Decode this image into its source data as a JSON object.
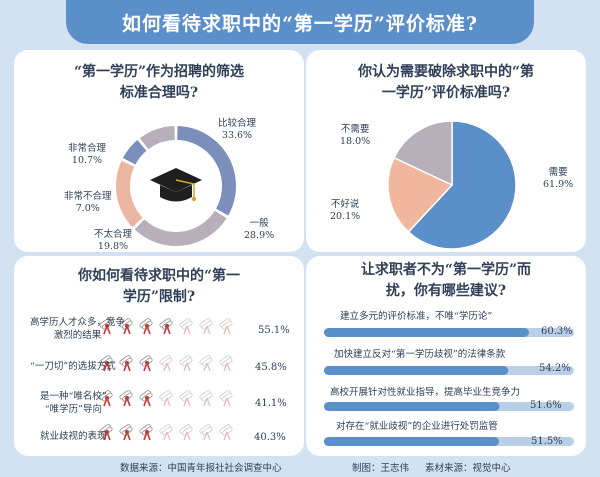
{
  "header": {
    "title": "如何看待求职中的“第一学历”评价标准?"
  },
  "colors": {
    "banner": "#5b8fca",
    "ring_blue": "#7b8fbd",
    "ring_gray": "#b7b0bb",
    "ring_salmon": "#eab6a2",
    "pie_blue": "#5b8fca",
    "pie_salmon": "#f1b79c",
    "pie_gray": "#b7afb9",
    "bar_track": "#b9cfe6",
    "bar_fill": "#5b8fca",
    "icon_red": "#c23a36"
  },
  "chart_data": [
    {
      "type": "pie",
      "style": "donut",
      "title_lines": [
        "“第一学历”作为招聘的筛选",
        "标准合理吗?"
      ],
      "slices": [
        {
          "label": "比较合理",
          "value": 33.6,
          "value_text": "33.6%",
          "color": "#7b8fbd"
        },
        {
          "label": "一般",
          "value": 28.9,
          "value_text": "28.9%",
          "color": "#b7b0bb"
        },
        {
          "label": "不太合理",
          "value": 19.8,
          "value_text": "19.8%",
          "color": "#eab6a2"
        },
        {
          "label": "非常不合理",
          "value": 7.0,
          "value_text": "7.0%",
          "color": "#7b8fbd"
        },
        {
          "label": "非常合理",
          "value": 10.7,
          "value_text": "10.7%",
          "color": "#b7b0bb"
        }
      ],
      "center_icon": "graduation-cap-icon"
    },
    {
      "type": "pie",
      "title_lines": [
        "你认为需要破除求职中的“第",
        "一学历”评价标准吗?"
      ],
      "slices": [
        {
          "label": "需要",
          "value": 61.9,
          "value_text": "61.9%",
          "color": "#5b8fca"
        },
        {
          "label": "不好说",
          "value": 20.1,
          "value_text": "20.1%",
          "color": "#f1b79c"
        },
        {
          "label": "不需要",
          "value": 18.0,
          "value_text": "18.0%",
          "color": "#b7afb9"
        }
      ]
    },
    {
      "type": "bar",
      "style": "pictogram",
      "icon": "diploma-scroll-icon",
      "icons_per_row": 7,
      "title_lines": [
        "你如何看待求职中的“第一",
        "学历”限制?"
      ],
      "rows": [
        {
          "label_lines": [
            "高学历人才众多，竞争",
            "激烈的结果"
          ],
          "value": 55.1,
          "value_text": "55.1%"
        },
        {
          "label_lines": [
            "“一刀切”的选拔方式"
          ],
          "value": 45.8,
          "value_text": "45.8%"
        },
        {
          "label_lines": [
            "是一种“唯名校”",
            "“唯学历”导向"
          ],
          "value": 41.1,
          "value_text": "41.1%"
        },
        {
          "label_lines": [
            "就业歧视的表现"
          ],
          "value": 40.3,
          "value_text": "40.3%"
        }
      ]
    },
    {
      "type": "bar",
      "orientation": "horizontal",
      "title_lines": [
        "让求职者不为“第一学历”而",
        "扰，你有哪些建议?"
      ],
      "max": 100,
      "bars": [
        {
          "label": "建立多元的评价标准，不唯“学历论”",
          "value": 60.3,
          "value_text": "60.3%"
        },
        {
          "label": "加快建立反对“第一学历歧视”的法律条款",
          "value": 54.2,
          "value_text": "54.2%"
        },
        {
          "label": "高校开展针对性就业指导，提高毕业生竞争力",
          "value": 51.6,
          "value_text": "51.6%"
        },
        {
          "label": "对存在“就业歧视”的企业进行处罚监管",
          "value": 51.5,
          "value_text": "51.5%"
        }
      ]
    }
  ],
  "footer": {
    "source": "数据来源：中国青年报社社会调查中心",
    "author": "制图：王志伟",
    "material": "素材来源：视觉中心"
  }
}
